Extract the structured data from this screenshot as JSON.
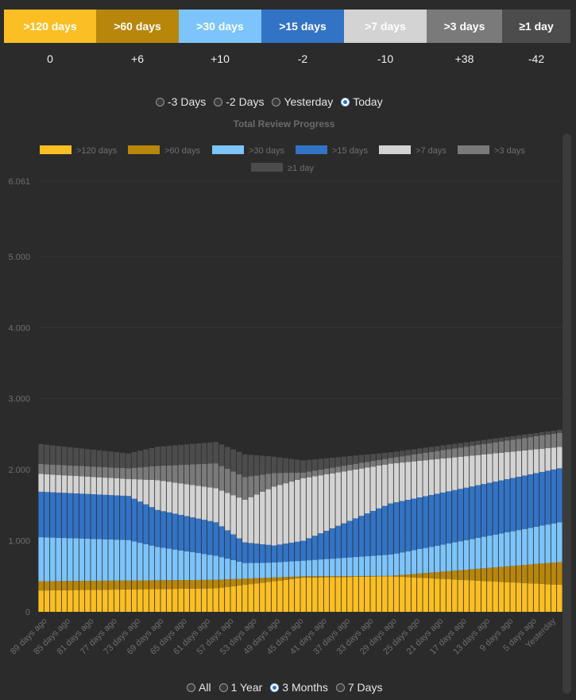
{
  "categories": [
    {
      "label": ">120 days",
      "delta": "0",
      "color": "#fbbf24",
      "text_color": "#ffffff"
    },
    {
      "label": ">60 days",
      "delta": "+6",
      "color": "#b8860b",
      "text_color": "#ffffff"
    },
    {
      "label": ">30 days",
      "delta": "+10",
      "color": "#7cc4fb",
      "text_color": "#ffffff"
    },
    {
      "label": ">15 days",
      "delta": "-2",
      "color": "#3273c5",
      "text_color": "#ffffff"
    },
    {
      "label": ">7 days",
      "delta": "-10",
      "color": "#d3d3d3",
      "text_color": "#ffffff"
    },
    {
      "label": ">3 days",
      "delta": "+38",
      "color": "#7a7a7a",
      "text_color": "#ffffff"
    },
    {
      "label": "≥1 day",
      "delta": "-42",
      "color": "#4c4c4c",
      "text_color": "#ffffff"
    }
  ],
  "compare_options": {
    "items": [
      "-3 Days",
      "-2 Days",
      "Yesterday",
      "Today"
    ],
    "selected": "Today"
  },
  "range_options": {
    "items": [
      "All",
      "1 Year",
      "3 Months",
      "7 Days"
    ],
    "selected": "3 Months"
  },
  "chart_data": {
    "type": "bar",
    "stacked": true,
    "title": "Total Review Progress",
    "ylim": [
      0,
      6061
    ],
    "yticks": [
      "0",
      "1.000",
      "2.000",
      "3.000",
      "4.000",
      "5.000",
      "6.061"
    ],
    "xtick_labels": [
      "89 days ago",
      "85 days ago",
      "81 days ago",
      "77 days ago",
      "73 days ago",
      "69 days ago",
      "65 days ago",
      "61 days ago",
      "57 days ago",
      "53 days ago",
      "49 days ago",
      "45 days ago",
      "41 days ago",
      "37 days ago",
      "33 days ago",
      "29 days ago",
      "25 days ago",
      "21 days ago",
      "17 days ago",
      "13 days ago",
      "9 days ago",
      "5 days ago",
      "Yesterday"
    ],
    "legend": [
      ">120 days",
      ">60 days",
      ">30 days",
      ">15 days",
      ">7 days",
      ">3 days",
      "≥1 day"
    ],
    "legend_position": "top",
    "grid": true,
    "n_bars": 90,
    "series": [
      {
        "name": ">120 days",
        "key_points": [
          [
            0,
            300
          ],
          [
            30,
            330
          ],
          [
            45,
            480
          ],
          [
            60,
            500
          ],
          [
            89,
            380
          ]
        ]
      },
      {
        "name": ">60 days",
        "key_points": [
          [
            0,
            130
          ],
          [
            30,
            120
          ],
          [
            45,
            20
          ],
          [
            60,
            5
          ],
          [
            89,
            320
          ]
        ]
      },
      {
        "name": ">30 days",
        "key_points": [
          [
            0,
            620
          ],
          [
            15,
            570
          ],
          [
            20,
            470
          ],
          [
            30,
            340
          ],
          [
            35,
            220
          ],
          [
            40,
            210
          ],
          [
            45,
            220
          ],
          [
            60,
            300
          ],
          [
            89,
            560
          ]
        ]
      },
      {
        "name": ">15 days",
        "key_points": [
          [
            0,
            640
          ],
          [
            15,
            620
          ],
          [
            20,
            520
          ],
          [
            30,
            470
          ],
          [
            35,
            290
          ],
          [
            40,
            240
          ],
          [
            45,
            280
          ],
          [
            60,
            720
          ],
          [
            89,
            760
          ]
        ]
      },
      {
        "name": ">7 days",
        "key_points": [
          [
            0,
            250
          ],
          [
            15,
            240
          ],
          [
            20,
            420
          ],
          [
            30,
            480
          ],
          [
            35,
            600
          ],
          [
            40,
            830
          ],
          [
            45,
            880
          ],
          [
            60,
            560
          ],
          [
            89,
            300
          ]
        ]
      },
      {
        "name": ">3 days",
        "key_points": [
          [
            0,
            140
          ],
          [
            15,
            150
          ],
          [
            20,
            200
          ],
          [
            30,
            350
          ],
          [
            35,
            320
          ],
          [
            40,
            190
          ],
          [
            45,
            80
          ],
          [
            60,
            80
          ],
          [
            89,
            200
          ]
        ]
      },
      {
        "name": "≥1 day",
        "key_points": [
          [
            0,
            280
          ],
          [
            15,
            210
          ],
          [
            20,
            270
          ],
          [
            30,
            300
          ],
          [
            35,
            320
          ],
          [
            40,
            230
          ],
          [
            45,
            170
          ],
          [
            60,
            80
          ],
          [
            89,
            40
          ]
        ]
      }
    ]
  }
}
